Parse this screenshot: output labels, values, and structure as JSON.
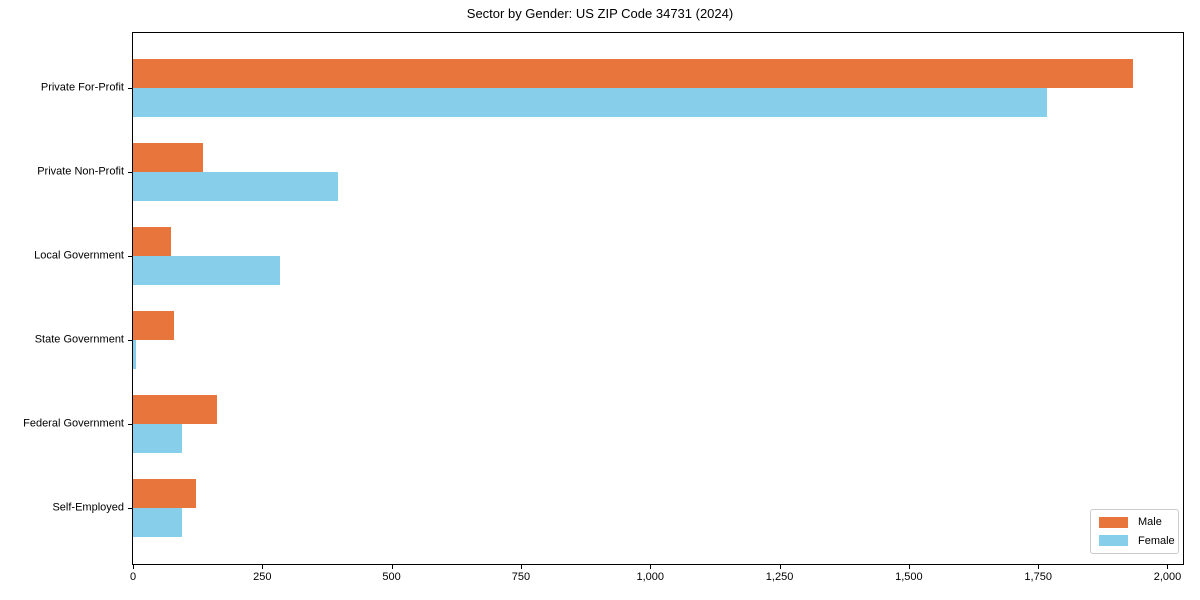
{
  "title": "Sector by Gender: US ZIP Code 34731 (2024)",
  "chart_data": {
    "type": "bar",
    "orientation": "horizontal",
    "title": "Sector by Gender: US ZIP Code 34731 (2024)",
    "xlabel": "",
    "ylabel": "",
    "categories": [
      "Private For-Profit",
      "Private Non-Profit",
      "Local Government",
      "State Government",
      "Federal Government",
      "Self-Employed"
    ],
    "series": [
      {
        "name": "Male",
        "color": "#E8763C",
        "values": [
          1933,
          136,
          74,
          80,
          162,
          122
        ]
      },
      {
        "name": "Female",
        "color": "#87CEEB",
        "values": [
          1767,
          396,
          285,
          5,
          94,
          94
        ]
      }
    ],
    "xlim": [
      0,
      2030
    ],
    "xticks": [
      0,
      250,
      500,
      750,
      1000,
      1250,
      1500,
      1750,
      2000
    ],
    "xtick_labels": [
      "0",
      "250",
      "500",
      "750",
      "1,000",
      "1,250",
      "1,500",
      "1,750",
      "2,000"
    ],
    "grid": false,
    "legend_position": "lower right"
  }
}
